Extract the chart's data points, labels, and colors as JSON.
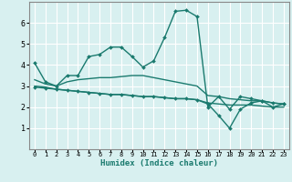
{
  "background_color": "#d8f0f0",
  "grid_color": "#ffffff",
  "line_color": "#1a7a6e",
  "x_label": "Humidex (Indice chaleur)",
  "xlim": [
    -0.5,
    23.5
  ],
  "ylim": [
    0,
    7
  ],
  "yticks": [
    1,
    2,
    3,
    4,
    5,
    6
  ],
  "xticks": [
    0,
    1,
    2,
    3,
    4,
    5,
    6,
    7,
    8,
    9,
    10,
    11,
    12,
    13,
    14,
    15,
    16,
    17,
    18,
    19,
    20,
    21,
    22,
    23
  ],
  "series": [
    {
      "x": [
        0,
        1,
        2,
        3,
        4,
        5,
        6,
        7,
        8,
        9,
        10,
        11,
        12,
        13,
        14,
        15,
        16,
        17,
        18,
        19,
        20,
        21,
        22,
        23
      ],
      "y": [
        4.1,
        3.2,
        3.0,
        3.5,
        3.5,
        4.4,
        4.5,
        4.85,
        4.85,
        4.4,
        3.9,
        4.2,
        5.3,
        6.55,
        6.6,
        6.3,
        2.0,
        2.5,
        1.9,
        2.5,
        2.4,
        2.3,
        2.0,
        2.15
      ],
      "has_marker": true,
      "linewidth": 1.0
    },
    {
      "x": [
        0,
        1,
        2,
        3,
        4,
        5,
        6,
        7,
        8,
        9,
        10,
        11,
        12,
        13,
        14,
        15,
        16,
        17,
        18,
        19,
        20,
        21,
        22,
        23
      ],
      "y": [
        3.3,
        3.1,
        3.0,
        3.2,
        3.3,
        3.35,
        3.4,
        3.4,
        3.45,
        3.5,
        3.5,
        3.4,
        3.3,
        3.2,
        3.1,
        3.0,
        2.55,
        2.5,
        2.4,
        2.35,
        2.3,
        2.3,
        2.2,
        2.15
      ],
      "has_marker": false,
      "linewidth": 1.0
    },
    {
      "x": [
        0,
        1,
        2,
        3,
        4,
        5,
        6,
        7,
        8,
        9,
        10,
        11,
        12,
        13,
        14,
        15,
        16,
        17,
        18,
        19,
        20,
        21,
        22,
        23
      ],
      "y": [
        3.0,
        2.95,
        2.85,
        2.8,
        2.75,
        2.7,
        2.65,
        2.6,
        2.6,
        2.55,
        2.5,
        2.5,
        2.45,
        2.4,
        2.4,
        2.35,
        2.2,
        2.15,
        2.1,
        2.1,
        2.1,
        2.05,
        2.0,
        2.0
      ],
      "has_marker": false,
      "linewidth": 1.0
    },
    {
      "x": [
        0,
        1,
        2,
        3,
        4,
        5,
        6,
        7,
        8,
        9,
        10,
        11,
        12,
        13,
        14,
        15,
        16,
        17,
        18,
        19,
        20,
        21,
        22,
        23
      ],
      "y": [
        2.95,
        2.9,
        2.85,
        2.8,
        2.75,
        2.7,
        2.65,
        2.6,
        2.6,
        2.55,
        2.5,
        2.5,
        2.45,
        2.4,
        2.4,
        2.35,
        2.15,
        1.6,
        1.0,
        1.9,
        2.2,
        2.3,
        2.2,
        2.15
      ],
      "has_marker": true,
      "linewidth": 1.0
    }
  ]
}
